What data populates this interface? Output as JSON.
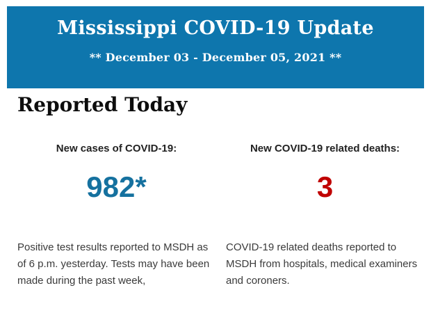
{
  "header": {
    "title": "Mississippi COVID-19 Update",
    "date_range": "** December 03 - December 05, 2021 **",
    "background_color": "#0e76ad",
    "text_color": "#ffffff"
  },
  "main": {
    "section_title": "Reported Today",
    "stats": [
      {
        "label": "New cases of COVID-19:",
        "value": "982*",
        "value_color": "#15719f",
        "description": "Positive test results reported to MSDH as of 6 p.m. yesterday. Tests may have been made during the past week,"
      },
      {
        "label": "New COVID-19 related deaths:",
        "value": "3",
        "value_color": "#c00000",
        "description": "COVID-19 related deaths reported to MSDH from hospitals, medical examiners and coroners."
      }
    ]
  }
}
